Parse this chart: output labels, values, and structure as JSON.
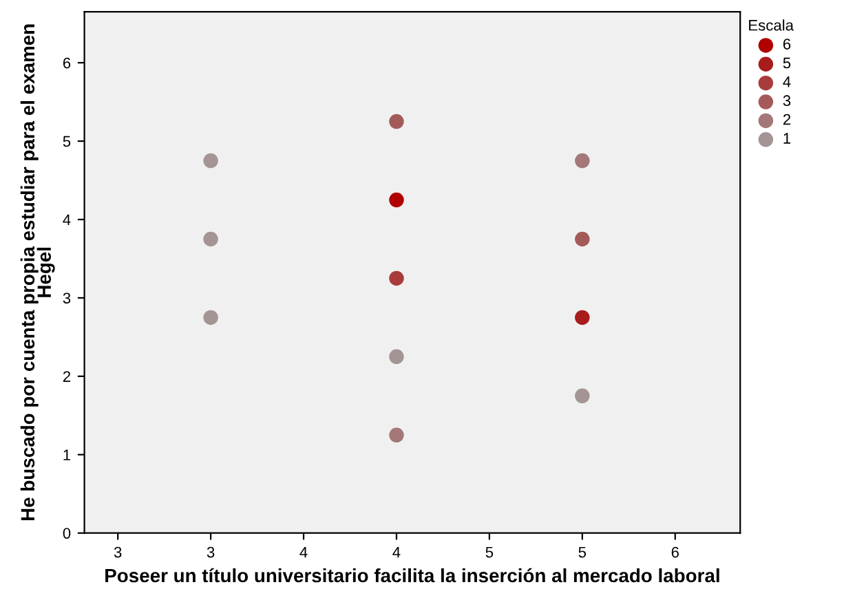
{
  "chart_data": {
    "type": "scatter",
    "xlabel": "Poseer un título universitario facilita la inserción al mercado laboral",
    "ylabel": "He buscado por cuenta propia estudiar para el examen\nHegel",
    "legend_title": "Escala",
    "legend": "top right",
    "grid": false,
    "marker": "circle",
    "xlim": [
      2.32,
      5.85
    ],
    "xticks": [
      {
        "value": 2.5,
        "label": "3"
      },
      3,
      {
        "value": 3.5,
        "label": "4"
      },
      4,
      {
        "value": 4.5,
        "label": "5"
      },
      5,
      {
        "value": 5.5,
        "label": "6"
      }
    ],
    "ylim": [
      0,
      6.65
    ],
    "yticks": [
      0,
      1,
      2,
      3,
      4,
      5,
      6
    ],
    "series": [
      {
        "name": "6",
        "color": "#b00000",
        "x": [
          4
        ],
        "values": [
          4.25
        ]
      },
      {
        "name": "5",
        "color": "#a81c1c",
        "x": [
          5
        ],
        "values": [
          2.75
        ]
      },
      {
        "name": "4",
        "color": "#a83c3c",
        "x": [
          4
        ],
        "values": [
          3.25
        ]
      },
      {
        "name": "3",
        "color": "#a55a5a",
        "x": [
          4,
          5
        ],
        "values": [
          5.25,
          3.75
        ]
      },
      {
        "name": "2",
        "color": "#a47878",
        "x": [
          4,
          5
        ],
        "values": [
          1.25,
          4.75
        ]
      },
      {
        "name": "1",
        "color": "#a49494",
        "x": [
          3,
          3,
          3,
          4,
          5
        ],
        "values": [
          4.75,
          3.75,
          2.75,
          2.25,
          1.75
        ]
      }
    ]
  }
}
